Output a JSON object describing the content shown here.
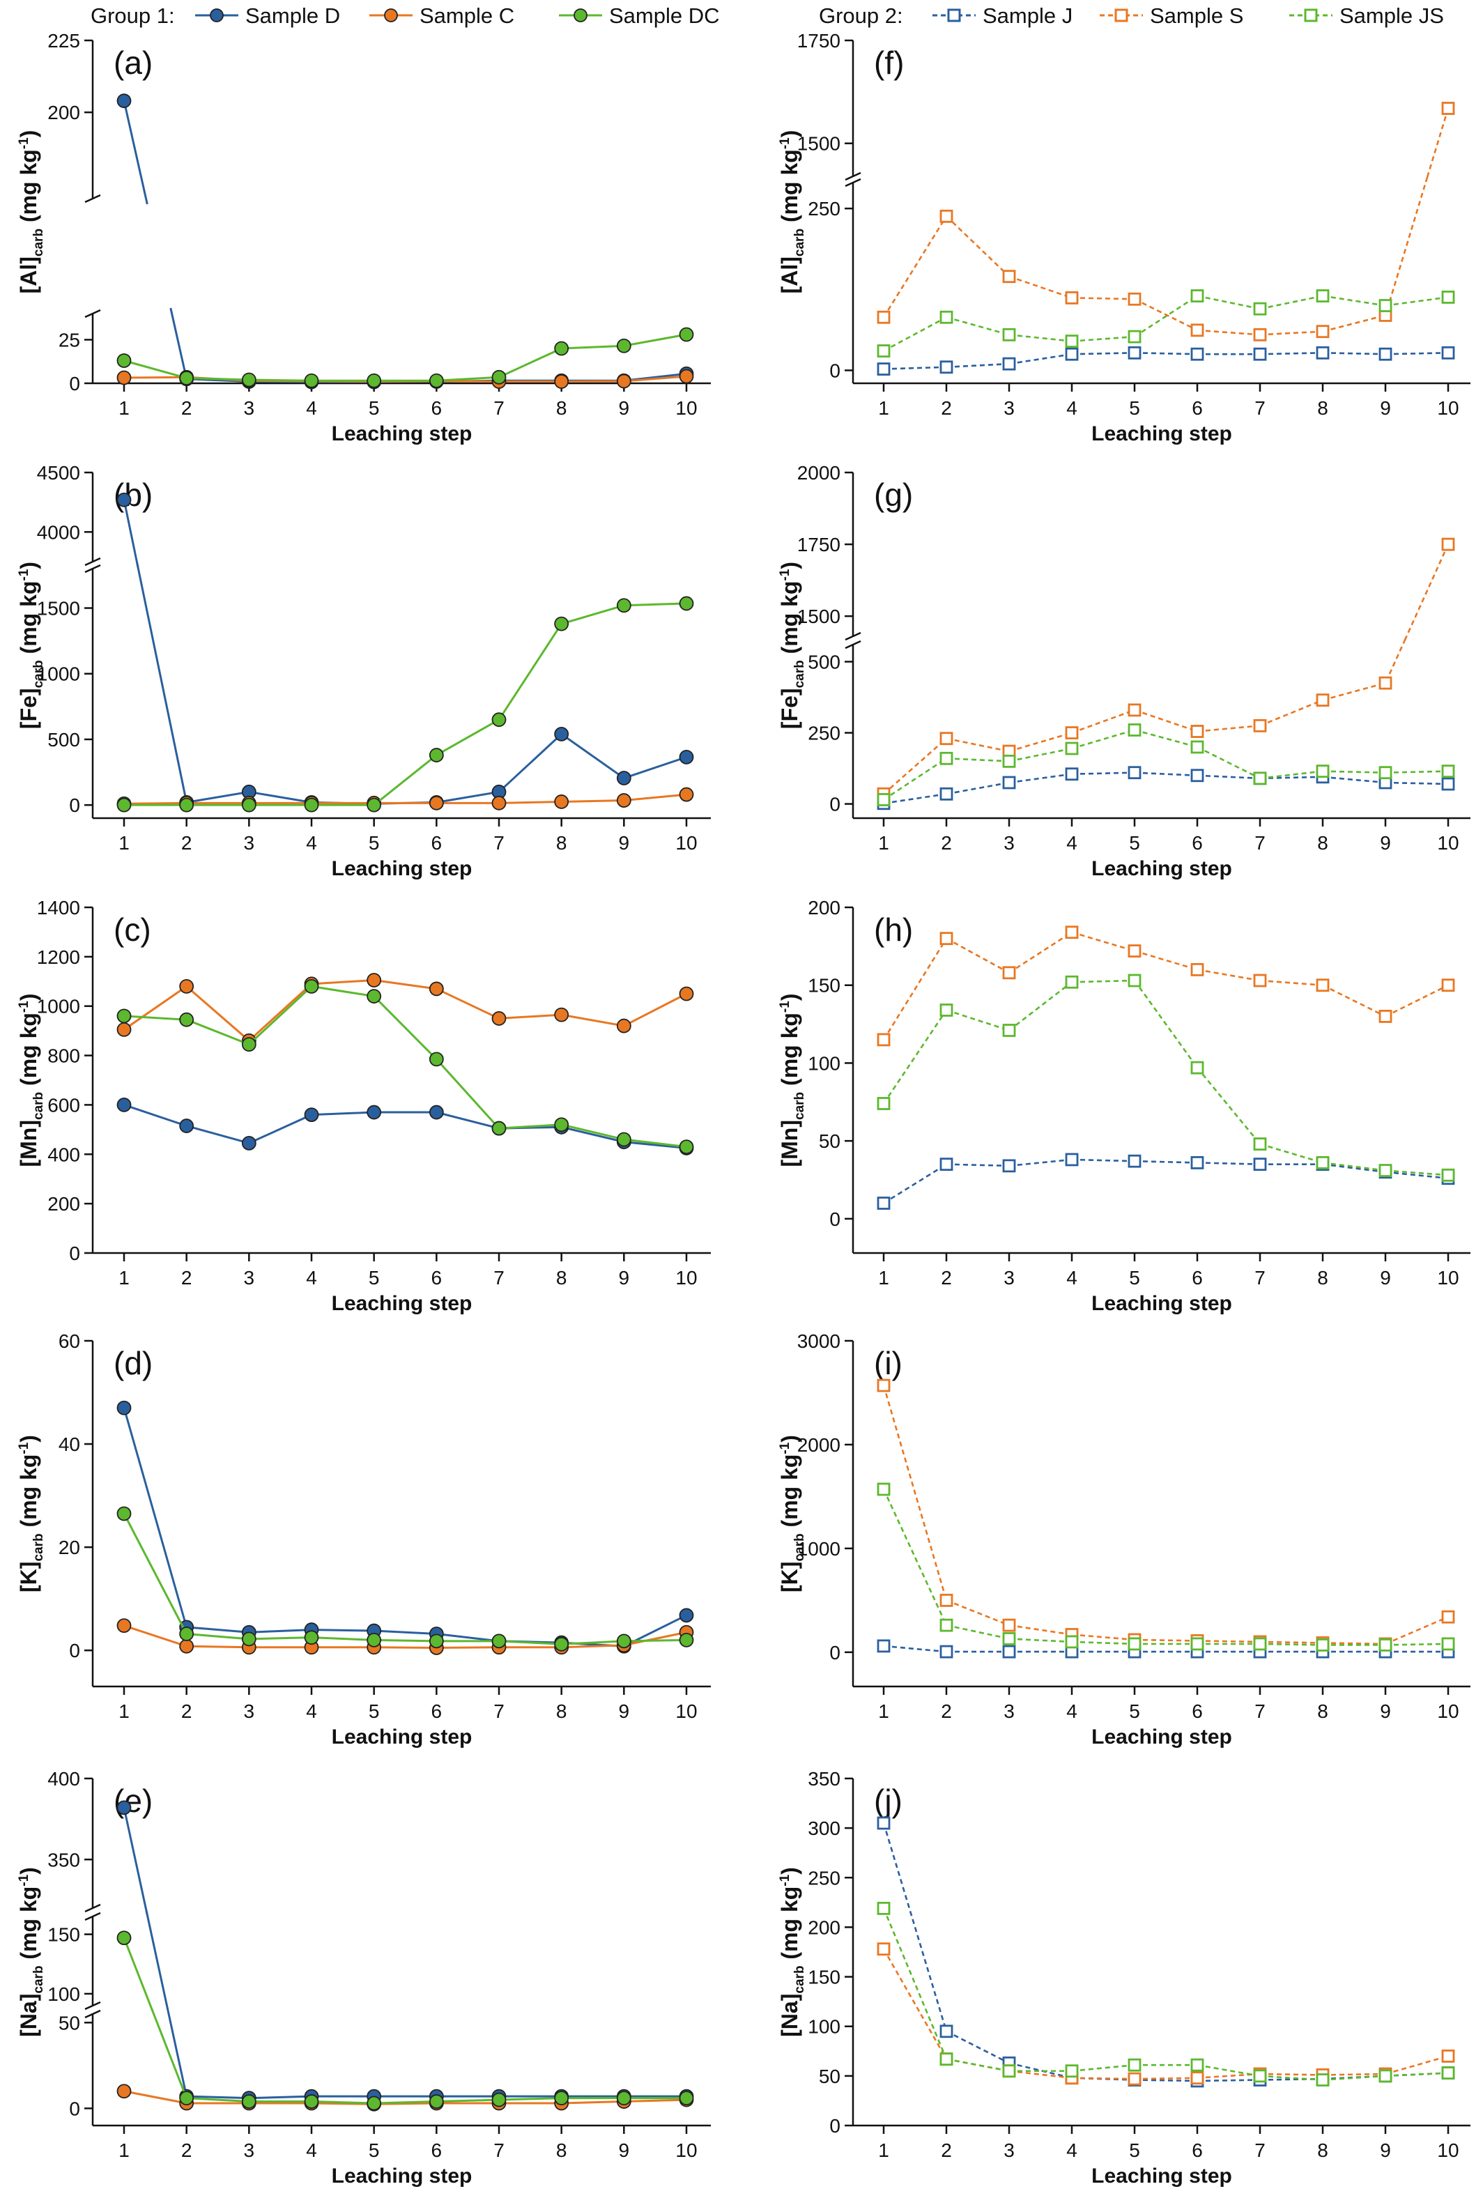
{
  "legend": {
    "group1": {
      "title": "Group 1:",
      "items": [
        {
          "name": "Sample D",
          "color": "#2a5f9e"
        },
        {
          "name": "Sample C",
          "color": "#e87722"
        },
        {
          "name": "Sample DC",
          "color": "#5cb82e"
        }
      ]
    },
    "group2": {
      "title": "Group 2:",
      "items": [
        {
          "name": "Sample J",
          "color": "#2a5f9e"
        },
        {
          "name": "Sample S",
          "color": "#e87722"
        },
        {
          "name": "Sample JS",
          "color": "#5cb82e"
        }
      ]
    }
  },
  "chart_data": [
    {
      "panel": "(a)",
      "type": "line",
      "marker": "circle",
      "line_style": "solid",
      "ylabel": "[Al]",
      "ylabel_sub": "carb",
      "ylabel_unit": "(mg kg-1)",
      "xlabel": "Leaching step",
      "x": [
        1,
        2,
        3,
        4,
        5,
        6,
        7,
        8,
        9,
        10
      ],
      "broken_axis": true,
      "segments": [
        {
          "range": [
            0,
            40
          ],
          "ticks": [
            0,
            25
          ]
        },
        {
          "range": [
            170,
            225
          ],
          "ticks": [
            200,
            225
          ]
        }
      ],
      "series": [
        {
          "name": "Sample D",
          "values": [
            204,
            2.5,
            1.0,
            0.8,
            0.8,
            1.0,
            1.5,
            1.5,
            1.5,
            5.5
          ]
        },
        {
          "name": "Sample C",
          "values": [
            3.2,
            3.5,
            1.5,
            1.2,
            1.0,
            1.2,
            1.0,
            1.0,
            1.2,
            4.0
          ]
        },
        {
          "name": "Sample DC",
          "values": [
            13,
            3.0,
            2.0,
            1.5,
            1.5,
            1.5,
            3.5,
            20,
            21.5,
            28
          ]
        }
      ]
    },
    {
      "panel": "(b)",
      "type": "line",
      "marker": "circle",
      "line_style": "solid",
      "ylabel": "[Fe]",
      "ylabel_sub": "carb",
      "ylabel_unit": "(mg kg-1)",
      "xlabel": "Leaching step",
      "x": [
        1,
        2,
        3,
        4,
        5,
        6,
        7,
        8,
        9,
        10
      ],
      "broken_axis": true,
      "segments": [
        {
          "range": [
            -100,
            1800
          ],
          "ticks": [
            0,
            500,
            1000,
            1500
          ]
        },
        {
          "range": [
            3750,
            4500
          ],
          "ticks": [
            4000,
            4500
          ]
        }
      ],
      "series": [
        {
          "name": "Sample D",
          "values": [
            4270,
            20,
            100,
            20,
            10,
            20,
            100,
            540,
            205,
            365
          ]
        },
        {
          "name": "Sample C",
          "values": [
            10,
            15,
            15,
            15,
            15,
            15,
            15,
            25,
            35,
            80
          ]
        },
        {
          "name": "Sample DC",
          "values": [
            0,
            0,
            0,
            0,
            0,
            380,
            650,
            1380,
            1520,
            1535
          ]
        }
      ]
    },
    {
      "panel": "(c)",
      "type": "line",
      "marker": "circle",
      "line_style": "solid",
      "ylabel": "[Mn]",
      "ylabel_sub": "carb",
      "ylabel_unit": "(mg kg-1)",
      "xlabel": "Leaching step",
      "x": [
        1,
        2,
        3,
        4,
        5,
        6,
        7,
        8,
        9,
        10
      ],
      "broken_axis": false,
      "segments": [
        {
          "range": [
            0,
            1400
          ],
          "ticks": [
            0,
            200,
            400,
            600,
            800,
            1000,
            1200,
            1400
          ]
        }
      ],
      "series": [
        {
          "name": "Sample D",
          "values": [
            600,
            515,
            445,
            560,
            570,
            570,
            505,
            510,
            450,
            425
          ]
        },
        {
          "name": "Sample C",
          "values": [
            905,
            1080,
            860,
            1090,
            1105,
            1070,
            950,
            965,
            920,
            1050
          ]
        },
        {
          "name": "Sample DC",
          "values": [
            960,
            945,
            845,
            1080,
            1040,
            785,
            505,
            520,
            460,
            430
          ]
        }
      ]
    },
    {
      "panel": "(d)",
      "type": "line",
      "marker": "circle",
      "line_style": "solid",
      "ylabel": "[K]",
      "ylabel_sub": "carb",
      "ylabel_unit": "(mg kg-1)",
      "xlabel": "Leaching step",
      "x": [
        1,
        2,
        3,
        4,
        5,
        6,
        7,
        8,
        9,
        10
      ],
      "broken_axis": false,
      "segments": [
        {
          "range": [
            -7,
            60
          ],
          "ticks": [
            0,
            20,
            40,
            60
          ]
        }
      ],
      "series": [
        {
          "name": "Sample D",
          "values": [
            47,
            4.5,
            3.5,
            4.0,
            3.8,
            3.2,
            1.8,
            1.5,
            0.8,
            6.8
          ]
        },
        {
          "name": "Sample C",
          "values": [
            4.8,
            0.8,
            0.6,
            0.6,
            0.6,
            0.5,
            0.6,
            0.6,
            1.0,
            3.5
          ]
        },
        {
          "name": "Sample DC",
          "values": [
            26.5,
            3.2,
            2.2,
            2.5,
            2.0,
            1.8,
            1.8,
            1.2,
            1.8,
            2.0
          ]
        }
      ]
    },
    {
      "panel": "(e)",
      "type": "line",
      "marker": "circle",
      "line_style": "solid",
      "ylabel": "[Na]",
      "ylabel_sub": "carb",
      "ylabel_unit": "(mg kg-1)",
      "xlabel": "Leaching step",
      "x": [
        1,
        2,
        3,
        4,
        5,
        6,
        7,
        8,
        9,
        10
      ],
      "broken_axis": true,
      "segments": [
        {
          "range": [
            -10,
            55
          ],
          "ticks": [
            0,
            50
          ]
        },
        {
          "range": [
            90,
            165
          ],
          "ticks": [
            100,
            150
          ]
        },
        {
          "range": [
            320,
            400
          ],
          "ticks": [
            350,
            400
          ]
        }
      ],
      "series": [
        {
          "name": "Sample D",
          "values": [
            382,
            7,
            6,
            7,
            7,
            7,
            7,
            7,
            7,
            7
          ]
        },
        {
          "name": "Sample C",
          "values": [
            10,
            3,
            3,
            3,
            2.5,
            3,
            3,
            3,
            4,
            5
          ]
        },
        {
          "name": "Sample DC",
          "values": [
            147,
            6,
            4,
            4,
            3,
            4,
            5,
            6,
            6,
            6
          ]
        }
      ]
    },
    {
      "panel": "(f)",
      "type": "line",
      "marker": "square-open",
      "line_style": "dashed",
      "ylabel": "[Al]",
      "ylabel_sub": "carb",
      "ylabel_unit": "(mg kg-1)",
      "xlabel": "Leaching step",
      "x": [
        1,
        2,
        3,
        4,
        5,
        6,
        7,
        8,
        9,
        10
      ],
      "broken_axis": true,
      "segments": [
        {
          "range": [
            -20,
            290
          ],
          "ticks": [
            0,
            250
          ]
        },
        {
          "range": [
            1420,
            1750
          ],
          "ticks": [
            1500,
            1750
          ]
        }
      ],
      "series": [
        {
          "name": "Sample J",
          "values": [
            2,
            5,
            10,
            25,
            27,
            25,
            25,
            27,
            25,
            27
          ]
        },
        {
          "name": "Sample S",
          "values": [
            82,
            238,
            145,
            112,
            110,
            62,
            55,
            60,
            85,
            1585
          ]
        },
        {
          "name": "Sample JS",
          "values": [
            30,
            82,
            55,
            45,
            52,
            115,
            95,
            115,
            100,
            113
          ]
        }
      ]
    },
    {
      "panel": "(g)",
      "type": "line",
      "marker": "square-open",
      "line_style": "dashed",
      "ylabel": "[Fe]",
      "ylabel_sub": "carb",
      "ylabel_unit": "(mg kg-1)",
      "xlabel": "Leaching step",
      "x": [
        1,
        2,
        3,
        4,
        5,
        6,
        7,
        8,
        9,
        10
      ],
      "broken_axis": true,
      "segments": [
        {
          "range": [
            -50,
            560
          ],
          "ticks": [
            0,
            250,
            500
          ]
        },
        {
          "range": [
            1430,
            2000
          ],
          "ticks": [
            1500,
            1750,
            2000
          ]
        }
      ],
      "series": [
        {
          "name": "Sample J",
          "values": [
            2,
            35,
            75,
            105,
            110,
            100,
            90,
            95,
            75,
            70
          ]
        },
        {
          "name": "Sample S",
          "values": [
            35,
            230,
            185,
            250,
            330,
            255,
            275,
            365,
            425,
            1750
          ]
        },
        {
          "name": "Sample JS",
          "values": [
            15,
            160,
            150,
            195,
            260,
            200,
            90,
            115,
            110,
            115
          ]
        }
      ]
    },
    {
      "panel": "(h)",
      "type": "line",
      "marker": "square-open",
      "line_style": "dashed",
      "ylabel": "[Mn]",
      "ylabel_sub": "carb",
      "ylabel_unit": "(mg kg-1)",
      "xlabel": "Leaching step",
      "x": [
        1,
        2,
        3,
        4,
        5,
        6,
        7,
        8,
        9,
        10
      ],
      "broken_axis": false,
      "segments": [
        {
          "range": [
            -22,
            200
          ],
          "ticks": [
            0,
            50,
            100,
            150,
            200
          ]
        }
      ],
      "series": [
        {
          "name": "Sample J",
          "values": [
            10,
            35,
            34,
            38,
            37,
            36,
            35,
            35,
            30,
            26
          ]
        },
        {
          "name": "Sample S",
          "values": [
            115,
            180,
            158,
            184,
            172,
            160,
            153,
            150,
            130,
            150
          ]
        },
        {
          "name": "Sample JS",
          "values": [
            74,
            134,
            121,
            152,
            153,
            97,
            48,
            36,
            31,
            28
          ]
        }
      ]
    },
    {
      "panel": "(i)",
      "type": "line",
      "marker": "square-open",
      "line_style": "dashed",
      "ylabel": "[K]",
      "ylabel_sub": "carb",
      "ylabel_unit": "(mg kg-1)",
      "xlabel": "Leaching step",
      "x": [
        1,
        2,
        3,
        4,
        5,
        6,
        7,
        8,
        9,
        10
      ],
      "broken_axis": false,
      "segments": [
        {
          "range": [
            -330,
            3000
          ],
          "ticks": [
            0,
            1000,
            2000,
            3000
          ]
        }
      ],
      "series": [
        {
          "name": "Sample J",
          "values": [
            60,
            5,
            5,
            5,
            5,
            5,
            5,
            5,
            5,
            5
          ]
        },
        {
          "name": "Sample S",
          "values": [
            2570,
            500,
            260,
            170,
            120,
            110,
            100,
            90,
            80,
            340
          ]
        },
        {
          "name": "Sample JS",
          "values": [
            1570,
            260,
            130,
            100,
            80,
            80,
            80,
            70,
            70,
            80
          ]
        }
      ]
    },
    {
      "panel": "(j)",
      "type": "line",
      "marker": "square-open",
      "line_style": "dashed",
      "ylabel": "[Na]",
      "ylabel_sub": "carb",
      "ylabel_unit": "(mg kg-1)",
      "xlabel": "Leaching step",
      "x": [
        1,
        2,
        3,
        4,
        5,
        6,
        7,
        8,
        9,
        10
      ],
      "broken_axis": false,
      "segments": [
        {
          "range": [
            0,
            350
          ],
          "ticks": [
            0,
            50,
            100,
            150,
            200,
            250,
            300,
            350
          ]
        }
      ],
      "series": [
        {
          "name": "Sample J",
          "values": [
            305,
            95,
            63,
            48,
            46,
            45,
            46,
            47,
            50,
            53
          ]
        },
        {
          "name": "Sample S",
          "values": [
            178,
            67,
            55,
            48,
            47,
            48,
            52,
            51,
            52,
            70
          ]
        },
        {
          "name": "Sample JS",
          "values": [
            219,
            67,
            55,
            55,
            61,
            61,
            50,
            46,
            50,
            53
          ]
        }
      ]
    }
  ]
}
